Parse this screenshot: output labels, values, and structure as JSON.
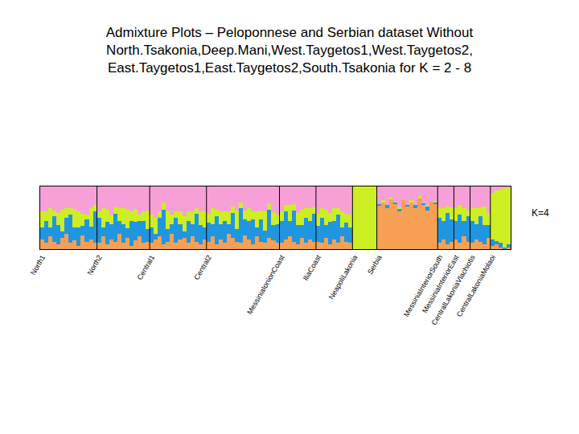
{
  "chart_data": {
    "type": "bar",
    "stacked": true,
    "title": "Admixture Plots – Peloponnese and Serbian dataset Without\nNorth.Tsakonia,Deep.Mani,West.Taygetos1,West.Taygetos2,\nEast.Taygetos1,East.Taygetos2,South.Tsakonia for K = 2 - 8",
    "annotations": [
      {
        "text": "K=4"
      }
    ],
    "tick_labels": "x",
    "ylim": [
      0,
      1
    ],
    "categories": [
      "North1",
      null,
      null,
      null,
      null,
      null,
      null,
      null,
      null,
      null,
      null,
      null,
      null,
      null,
      "North2",
      null,
      null,
      null,
      null,
      null,
      null,
      null,
      null,
      null,
      null,
      null,
      null,
      "Central1",
      null,
      null,
      null,
      null,
      null,
      null,
      null,
      null,
      null,
      null,
      null,
      null,
      null,
      "Central2",
      null,
      null,
      null,
      null,
      null,
      null,
      null,
      null,
      null,
      null,
      null,
      null,
      null,
      null,
      null,
      null,
      null,
      "MessiniaIonionCoast",
      null,
      null,
      null,
      null,
      null,
      null,
      null,
      null,
      "IliaCoast",
      null,
      null,
      null,
      null,
      null,
      null,
      null,
      null,
      "NeapoliLakonia",
      null,
      null,
      null,
      null,
      null,
      "Serbia",
      null,
      null,
      null,
      null,
      null,
      null,
      null,
      null,
      null,
      null,
      null,
      null,
      null,
      null,
      "MessiniaInteriorSouth",
      null,
      null,
      null,
      "MessiniaInteriorEast",
      null,
      null,
      null,
      "CentralLakoniaVlachiotis",
      null,
      null,
      null,
      null,
      "CentralLakoniaMolaoi",
      null,
      null,
      null,
      null
    ],
    "series": [
      {
        "color": "#f5a055",
        "values": [
          0.15,
          0.1,
          0.2,
          0.12,
          0.08,
          0.18,
          0.25,
          0.1,
          0.14,
          0.05,
          0.22,
          0.12,
          0.16,
          0.1,
          0.1,
          0.2,
          0.08,
          0.15,
          0.12,
          0.25,
          0.1,
          0.18,
          0.05,
          0.14,
          0.2,
          0.1,
          0.12,
          0.1,
          0.15,
          0.2,
          0.08,
          0.12,
          0.25,
          0.1,
          0.15,
          0.18,
          0.1,
          0.2,
          0.12,
          0.08,
          0.15,
          0.12,
          0.2,
          0.08,
          0.15,
          0.1,
          0.25,
          0.18,
          0.12,
          0.1,
          0.22,
          0.15,
          0.08,
          0.2,
          0.12,
          0.1,
          0.18,
          0.14,
          0.1,
          0.1,
          0.15,
          0.2,
          0.12,
          0.08,
          0.18,
          0.1,
          0.15,
          0.12,
          0.12,
          0.1,
          0.18,
          0.08,
          0.15,
          0.1,
          0.2,
          0.12,
          0.1,
          0,
          0,
          0,
          0,
          0,
          0,
          0.7,
          0.75,
          0.65,
          0.8,
          0.72,
          0.6,
          0.78,
          0.68,
          0.74,
          0.66,
          0.82,
          0.7,
          0.62,
          0.76,
          0.72,
          0.1,
          0.15,
          0.08,
          0.12,
          0.15,
          0.1,
          0.2,
          0.12,
          0.1,
          0.15,
          0.12,
          0.08,
          0.18,
          0.05,
          0.08,
          0.02,
          0,
          0.03
        ]
      },
      {
        "color": "#2196e0",
        "values": [
          0.2,
          0.35,
          0.15,
          0.4,
          0.3,
          0.1,
          0.25,
          0.45,
          0.2,
          0.3,
          0.15,
          0.35,
          0.2,
          0.5,
          0.4,
          0.15,
          0.35,
          0.25,
          0.45,
          0.2,
          0.3,
          0.15,
          0.4,
          0.3,
          0.25,
          0.35,
          0.2,
          0.25,
          0.1,
          0.3,
          0.55,
          0.2,
          0.15,
          0.4,
          0.25,
          0.1,
          0.35,
          0.2,
          0.45,
          0.3,
          0.2,
          0.3,
          0.2,
          0.45,
          0.25,
          0.35,
          0.15,
          0.4,
          0.2,
          0.55,
          0.25,
          0.3,
          0.4,
          0.15,
          0.35,
          0.2,
          0.45,
          0.25,
          0.3,
          0.35,
          0.45,
          0.25,
          0.5,
          0.3,
          0.2,
          0.4,
          0.3,
          0.45,
          0.25,
          0.4,
          0.2,
          0.35,
          0.3,
          0.45,
          0.15,
          0.3,
          0.25,
          0,
          0,
          0,
          0,
          0,
          0,
          0.02,
          0,
          0.05,
          0,
          0.03,
          0.04,
          0,
          0.02,
          0,
          0.05,
          0,
          0.03,
          0.06,
          0,
          0.02,
          0.4,
          0.3,
          0.5,
          0.35,
          0.3,
          0.45,
          0.25,
          0.4,
          0.35,
          0.25,
          0.4,
          0.3,
          0.2,
          0.1,
          0.05,
          0.08,
          0.03,
          0.05
        ]
      },
      {
        "color": "#ccee22",
        "values": [
          0.25,
          0.15,
          0.3,
          0.1,
          0.2,
          0.35,
          0.15,
          0.1,
          0.3,
          0.25,
          0.2,
          0.08,
          0.3,
          0.1,
          0.1,
          0.3,
          0.2,
          0.15,
          0.1,
          0.2,
          0.25,
          0.3,
          0.15,
          0.2,
          0.1,
          0.15,
          0.3,
          0.2,
          0.25,
          0.1,
          0.12,
          0.3,
          0.15,
          0.1,
          0.2,
          0.25,
          0.15,
          0.2,
          0.08,
          0.22,
          0.25,
          0.15,
          0.25,
          0.1,
          0.2,
          0.15,
          0.2,
          0.1,
          0.3,
          0.1,
          0.15,
          0.2,
          0.12,
          0.25,
          0.15,
          0.3,
          0.1,
          0.2,
          0.15,
          0.15,
          0.1,
          0.25,
          0.1,
          0.2,
          0.25,
          0.15,
          0.2,
          0.1,
          0.2,
          0.15,
          0.25,
          0.15,
          0.2,
          0.1,
          0.25,
          0.15,
          0.2,
          1,
          1,
          1,
          1,
          1,
          1,
          0,
          0.03,
          0,
          0.02,
          0,
          0.03,
          0,
          0,
          0.04,
          0,
          0.02,
          0,
          0.02,
          0,
          0.03,
          0.15,
          0.2,
          0.1,
          0.2,
          0.2,
          0.15,
          0.2,
          0.1,
          0.2,
          0.25,
          0.15,
          0.3,
          0.2,
          0.75,
          0.8,
          0.85,
          0.95,
          0.9
        ]
      },
      {
        "color": "#f7a0d8",
        "values": [
          0.4,
          0.4,
          0.35,
          0.38,
          0.42,
          0.37,
          0.35,
          0.35,
          0.36,
          0.4,
          0.43,
          0.45,
          0.34,
          0.3,
          0.4,
          0.35,
          0.37,
          0.45,
          0.33,
          0.35,
          0.35,
          0.37,
          0.4,
          0.36,
          0.45,
          0.4,
          0.38,
          0.45,
          0.5,
          0.4,
          0.25,
          0.38,
          0.45,
          0.4,
          0.4,
          0.47,
          0.4,
          0.4,
          0.35,
          0.4,
          0.4,
          0.43,
          0.35,
          0.37,
          0.4,
          0.4,
          0.4,
          0.32,
          0.38,
          0.25,
          0.38,
          0.35,
          0.4,
          0.4,
          0.38,
          0.4,
          0.27,
          0.41,
          0.45,
          0.4,
          0.3,
          0.3,
          0.28,
          0.42,
          0.37,
          0.35,
          0.35,
          0.33,
          0.43,
          0.35,
          0.37,
          0.42,
          0.35,
          0.35,
          0.4,
          0.43,
          0.45,
          0,
          0,
          0,
          0,
          0,
          0,
          0.28,
          0.22,
          0.3,
          0.18,
          0.25,
          0.33,
          0.22,
          0.3,
          0.22,
          0.29,
          0.16,
          0.27,
          0.3,
          0.24,
          0.23,
          0.35,
          0.35,
          0.32,
          0.33,
          0.35,
          0.3,
          0.35,
          0.38,
          0.35,
          0.35,
          0.33,
          0.32,
          0.42,
          0.1,
          0.07,
          0.05,
          0.02,
          0.02
        ]
      }
    ]
  }
}
